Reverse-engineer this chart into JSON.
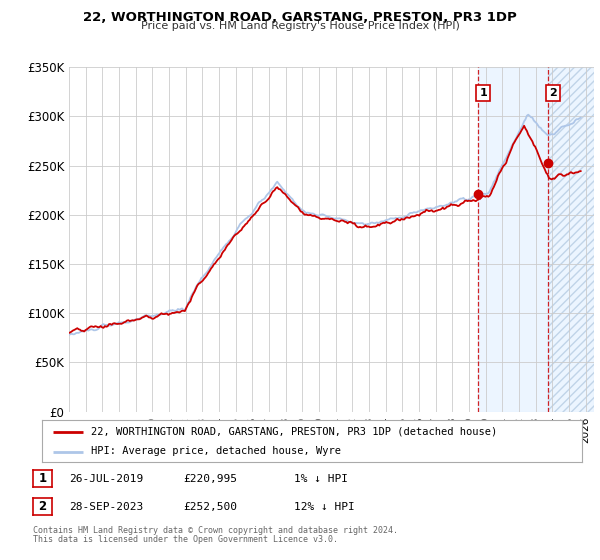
{
  "title": "22, WORTHINGTON ROAD, GARSTANG, PRESTON, PR3 1DP",
  "subtitle": "Price paid vs. HM Land Registry's House Price Index (HPI)",
  "legend_line1": "22, WORTHINGTON ROAD, GARSTANG, PRESTON, PR3 1DP (detached house)",
  "legend_line2": "HPI: Average price, detached house, Wyre",
  "annotation1_date": "26-JUL-2019",
  "annotation1_price": "£220,995",
  "annotation1_hpi": "1% ↓ HPI",
  "annotation2_date": "28-SEP-2023",
  "annotation2_price": "£252,500",
  "annotation2_hpi": "12% ↓ HPI",
  "footer1": "Contains HM Land Registry data © Crown copyright and database right 2024.",
  "footer2": "This data is licensed under the Open Government Licence v3.0.",
  "xmin": 1995.0,
  "xmax": 2026.5,
  "ymin": 0,
  "ymax": 350000,
  "yticks": [
    0,
    50000,
    100000,
    150000,
    200000,
    250000,
    300000,
    350000
  ],
  "ytick_labels": [
    "£0",
    "£50K",
    "£100K",
    "£150K",
    "£200K",
    "£250K",
    "£300K",
    "£350K"
  ],
  "xticks": [
    1995,
    1996,
    1997,
    1998,
    1999,
    2000,
    2001,
    2002,
    2003,
    2004,
    2005,
    2006,
    2007,
    2008,
    2009,
    2010,
    2011,
    2012,
    2013,
    2014,
    2015,
    2016,
    2017,
    2018,
    2019,
    2020,
    2021,
    2022,
    2023,
    2024,
    2025,
    2026
  ],
  "hpi_color": "#aec6e8",
  "price_color": "#cc0000",
  "vline1_x": 2019.55,
  "vline2_x": 2023.75,
  "marker1_x": 2019.55,
  "marker1_y": 220995,
  "marker2_x": 2023.75,
  "marker2_y": 252500,
  "shaded1_start": 2019.55,
  "shaded1_end": 2023.75,
  "shaded2_start": 2023.75,
  "shaded2_end": 2026.5,
  "bg_color": "#ffffff",
  "grid_color": "#cccccc",
  "shaded_color": "#ddeeff",
  "hatch_color": "#c0d4e8"
}
